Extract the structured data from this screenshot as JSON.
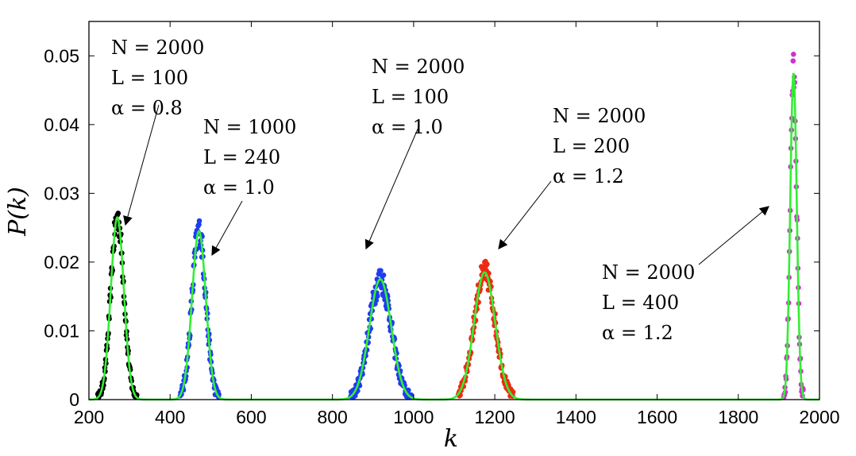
{
  "chart_data": {
    "type": "scatter",
    "title": "",
    "xlabel": "k",
    "ylabel": "P(k)",
    "xlim": [
      200,
      2000
    ],
    "ylim": [
      0,
      0.055
    ],
    "x_ticks": [
      "200",
      "400",
      "600",
      "800",
      "1000",
      "1200",
      "1400",
      "1600",
      "1800",
      "2000"
    ],
    "y_ticks": [
      "0",
      "0.01",
      "0.02",
      "0.03",
      "0.04",
      "0.05"
    ],
    "fit_color": "#33ee33",
    "series": [
      {
        "name": "N = 2000, L = 100, α = 0.8",
        "color": "#000000",
        "mean": 270,
        "sd": 16,
        "peak": 0.0265,
        "range": [
          222,
          318
        ],
        "jitter": 0.0018
      },
      {
        "name": "N = 1000, L = 240, α = 1.0",
        "color": "#1e3cf0",
        "mean": 471,
        "sd": 17,
        "peak": 0.0245,
        "range": [
          425,
          520
        ],
        "jitter": 0.0022
      },
      {
        "name": "N = 2000, L = 100, α = 1.0",
        "color": "#1e3cf0",
        "mean": 918,
        "sd": 27,
        "peak": 0.0175,
        "range": [
          845,
          995
        ],
        "jitter": 0.002
      },
      {
        "name": "N = 2000, L = 200, α = 1.2",
        "color": "#ee2a12",
        "mean": 1175,
        "sd": 26,
        "peak": 0.0185,
        "range": [
          1110,
          1245
        ],
        "jitter": 0.0018
      },
      {
        "name": "N = 2000, L = 400, α = 1.2",
        "color": "#cc33cc",
        "mean": 1936,
        "sd": 8,
        "peak": 0.0475,
        "range": [
          1912,
          1960
        ],
        "jitter": 0.003
      }
    ],
    "annotations": [
      {
        "lines": [
          "N = 2000",
          "L = 100",
          "α = 0.8"
        ],
        "series": 0
      },
      {
        "lines": [
          "N = 1000",
          "L = 240",
          "α = 1.0"
        ],
        "series": 1
      },
      {
        "lines": [
          "N = 2000",
          "L = 100",
          "α = 1.0"
        ],
        "series": 2
      },
      {
        "lines": [
          "N = 2000",
          "L = 200",
          "α = 1.2"
        ],
        "series": 3
      },
      {
        "lines": [
          "N = 2000",
          "L = 400",
          "α = 1.2"
        ],
        "series": 4
      }
    ]
  }
}
